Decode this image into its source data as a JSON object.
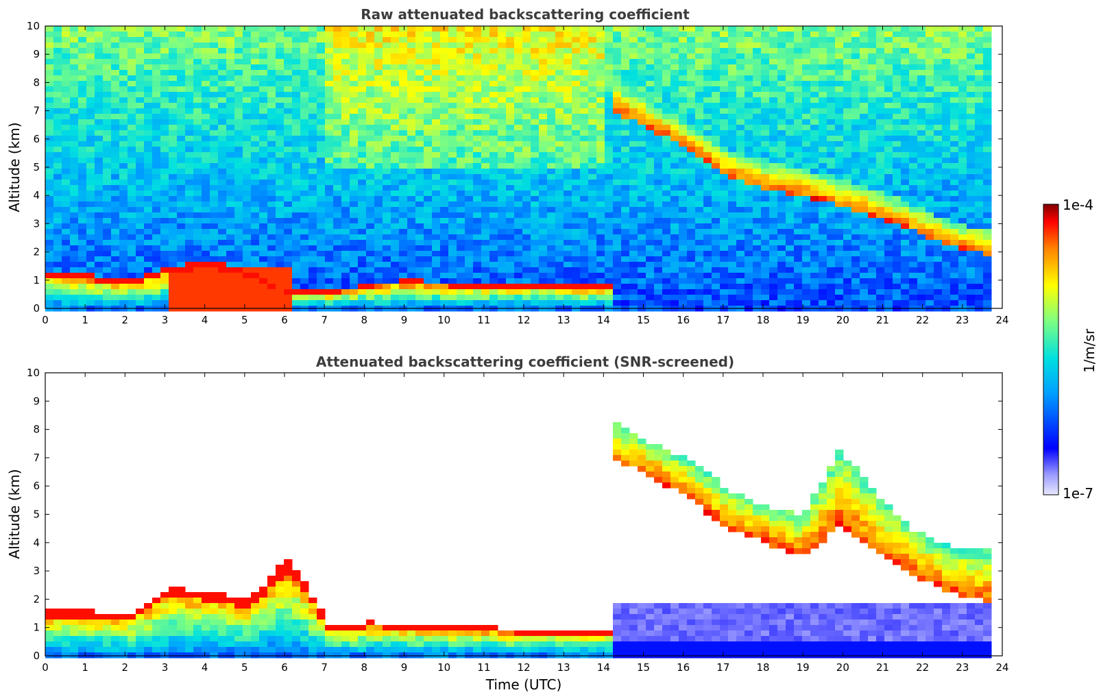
{
  "chart_data": [
    {
      "type": "heatmap",
      "title": "Raw attenuated backscattering coefficient",
      "xlabel": "",
      "ylabel": "Altitude (km)",
      "xlim": [
        0,
        24
      ],
      "ylim": [
        0,
        10
      ],
      "xticks": [
        "0",
        "1",
        "2",
        "3",
        "4",
        "5",
        "6",
        "7",
        "8",
        "9",
        "10",
        "11",
        "12",
        "13",
        "14",
        "15",
        "16",
        "17",
        "18",
        "19",
        "20",
        "21",
        "22",
        "23",
        "24"
      ],
      "yticks": [
        "0",
        "1",
        "2",
        "3",
        "4",
        "5",
        "6",
        "7",
        "8",
        "9",
        "10"
      ],
      "grid": false,
      "features": [
        {
          "kind": "boundary-layer",
          "x": [
            0,
            14.3
          ],
          "y_top_km": [
            1.3,
            1.2,
            1.0,
            1.4,
            1.7,
            1.3,
            0.6,
            0.6,
            0.9,
            1.0,
            0.9,
            0.9,
            0.9,
            0.8,
            0.8
          ],
          "intensity": 0.95
        },
        {
          "kind": "aerosol-layer",
          "x": [
            3.0,
            6.1
          ],
          "y": [
            0,
            1.4
          ],
          "intensity": 0.9
        },
        {
          "kind": "cirrus-band",
          "x": [
            14.3,
            23.7
          ],
          "y_top_km": [
            8.0,
            7.2,
            6.5,
            5.6,
            5.2,
            4.9,
            4.6,
            4.2,
            3.6,
            3.0,
            2.8
          ],
          "y_bottom_km": [
            6.9,
            6.3,
            5.6,
            4.6,
            4.2,
            4.0,
            3.6,
            3.2,
            2.7,
            2.2,
            1.9
          ],
          "intensity": 0.8
        },
        {
          "kind": "noise-background",
          "x": [
            0,
            23.7
          ],
          "y": [
            0,
            10
          ]
        }
      ]
    },
    {
      "type": "heatmap",
      "title": "Attenuated backscattering coefficient (SNR-screened)",
      "xlabel": "Time (UTC)",
      "ylabel": "Altitude (km)",
      "xlim": [
        0,
        24
      ],
      "ylim": [
        0,
        10
      ],
      "xticks": [
        "0",
        "1",
        "2",
        "3",
        "4",
        "5",
        "6",
        "7",
        "8",
        "9",
        "10",
        "11",
        "12",
        "13",
        "14",
        "15",
        "16",
        "17",
        "18",
        "19",
        "20",
        "21",
        "22",
        "23",
        "24"
      ],
      "yticks": [
        "0",
        "1",
        "2",
        "3",
        "4",
        "5",
        "6",
        "7",
        "8",
        "9",
        "10"
      ],
      "grid": false,
      "features": [
        {
          "kind": "boundary-layer",
          "x": [
            0,
            14.3
          ],
          "y_top_km": [
            1.6,
            1.6,
            1.4,
            2.4,
            2.3,
            2.0,
            3.5,
            1.0,
            1.2,
            1.1,
            1.1,
            1.0,
            0.9,
            0.9,
            0.9
          ],
          "intensity": 0.95
        },
        {
          "kind": "cirrus-band",
          "x": [
            14.3,
            23.7
          ],
          "y_top_km": [
            8.2,
            7.5,
            6.9,
            5.9,
            5.3,
            5.0,
            7.3,
            5.6,
            4.4,
            3.8,
            3.7
          ],
          "y_bottom_km": [
            6.9,
            6.3,
            5.5,
            4.5,
            4.0,
            3.5,
            4.6,
            3.6,
            2.8,
            2.2,
            1.9
          ],
          "intensity": 0.8
        },
        {
          "kind": "fog-layer",
          "x": [
            14.3,
            23.7
          ],
          "y": [
            0,
            1.8
          ],
          "intensity": 0.15
        }
      ]
    }
  ],
  "colorbar": {
    "max_label": "1e-4",
    "min_label": "1e-7",
    "unit_label": "1/m/sr",
    "colormap": "jet",
    "scale": "log"
  }
}
